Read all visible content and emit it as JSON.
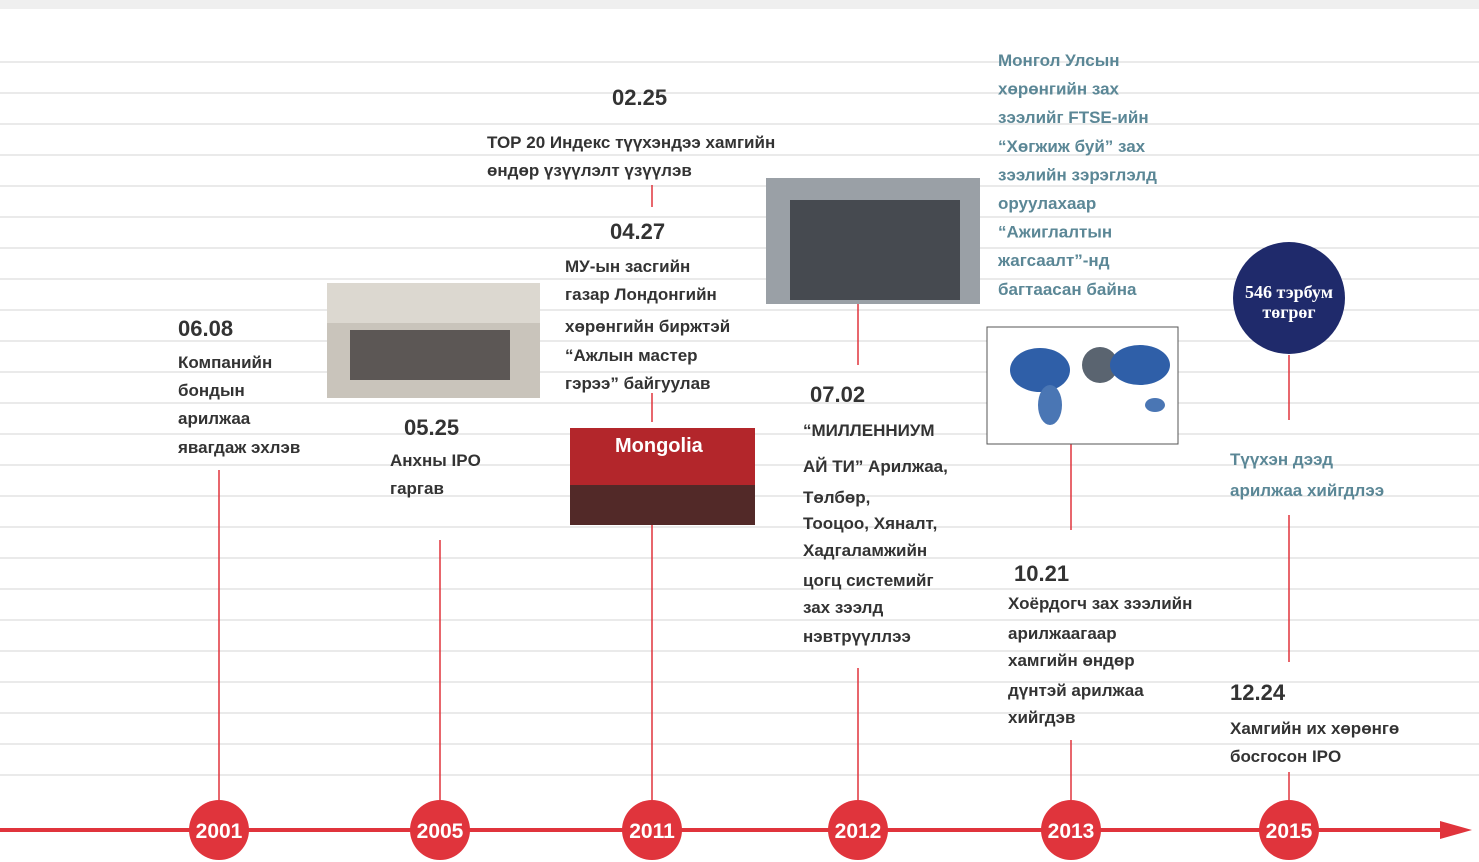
{
  "years": [
    "2001",
    "2005",
    "2011",
    "2012",
    "2013",
    "2015"
  ],
  "events": {
    "e2001": {
      "date": "06.08",
      "lines": [
        "Компанийн",
        "бондын",
        "арилжаа",
        "явагдаж эхлэв"
      ]
    },
    "e2005": {
      "date": "05.25",
      "lines": [
        "Анхны IPO",
        "гаргав"
      ]
    },
    "e2011a": {
      "date": "02.25",
      "lines": [
        "ТОР 20 Индекс түүхэндээ хамгийн",
        "өндөр үзүүлэлт үзүүлэв"
      ]
    },
    "e2011b": {
      "date": "04.27",
      "lines": [
        "МУ-ын засгийн",
        "газар Лондонгийн",
        "хөрөнгийн биржтэй",
        "“Ажлын мастер",
        "гэрээ” байгуулав"
      ]
    },
    "e2012": {
      "date": "07.02",
      "lines": [
        "“МИЛЛЕННИУМ",
        "АЙ ТИ” Арилжаа,",
        "Төлбөр,",
        "Тооцоо, Хяналт,",
        "Хадгаламжийн",
        "цогц системийг",
        "зах зээлд",
        "нэвтрүүллээ"
      ]
    },
    "e2013": {
      "date": "10.21",
      "lines": [
        "Хоёрдогч зах зээлийн",
        "арилжаагаар",
        "хамгийн өндөр",
        "дүнтэй арилжаа",
        "хийгдэв"
      ]
    },
    "e2015": {
      "date": "12.24",
      "lines": [
        "Хамгийн их хөрөнгө",
        "босгосон IPO"
      ]
    }
  },
  "notes": {
    "ftse": [
      "Монгол Улсын",
      "хөрөнгийн зах",
      "зээлийг FTSE-ийн",
      "“Хөгжиж буй” зах",
      "зээлийн зэрэглэлд",
      "оруулахаар",
      "“Ажиглалтын",
      "жагсаалт”-нд",
      "багтаасан байна"
    ],
    "record": [
      "Түүхэн дээд",
      "арилжаа хийгдлээ"
    ],
    "badge": [
      "546 тэрбум",
      "төгрөг"
    ],
    "photo_caption": "Mongolia"
  }
}
